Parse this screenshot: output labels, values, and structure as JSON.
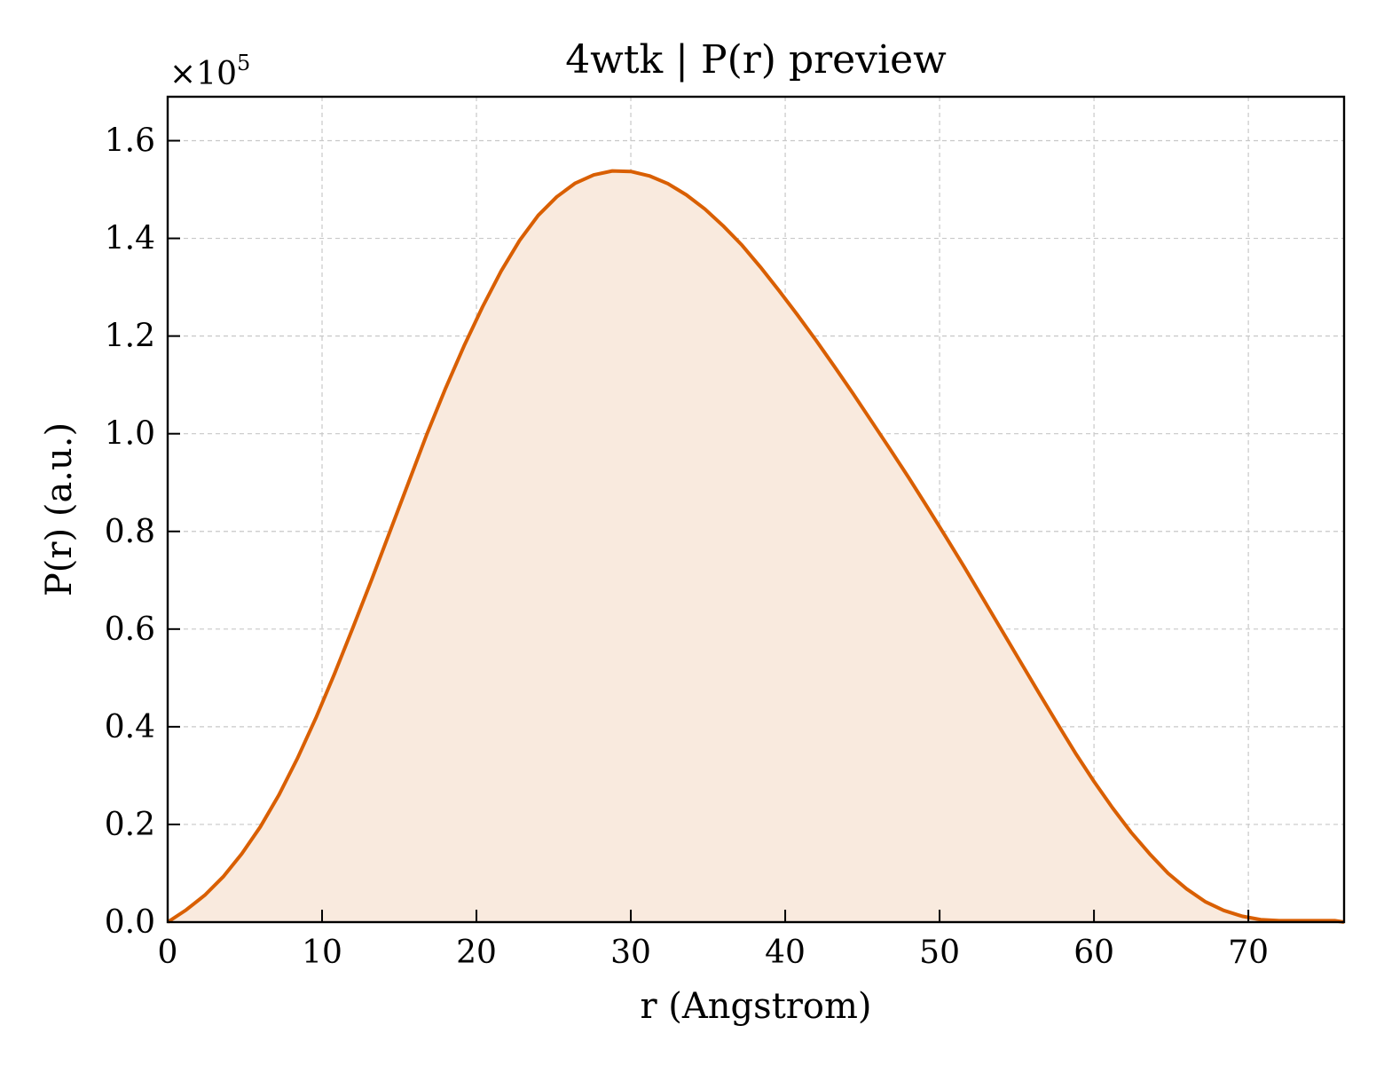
{
  "chart_data": {
    "type": "area",
    "title": "4wtk | P(r) preview",
    "xlabel": "r (Angstrom)",
    "ylabel": "P(r) (a.u.)",
    "y_scale_label": "×10",
    "y_scale_exponent": "5",
    "xlim": [
      0,
      76.2
    ],
    "ylim": [
      0,
      1.69
    ],
    "x_ticks": [
      0,
      10,
      20,
      30,
      40,
      50,
      60,
      70
    ],
    "x_tick_labels": [
      "0",
      "10",
      "20",
      "30",
      "40",
      "50",
      "60",
      "70"
    ],
    "y_ticks": [
      0,
      0.2,
      0.4,
      0.6,
      0.8,
      1.0,
      1.2,
      1.4,
      1.6
    ],
    "y_tick_labels": [
      "0.0",
      "0.2",
      "0.4",
      "0.6",
      "0.8",
      "1.0",
      "1.2",
      "1.4",
      "1.6"
    ],
    "grid": true,
    "line_color": "#d95f02",
    "fill_color": "#f9eade",
    "series": [
      {
        "x": [
          0,
          1.2,
          2.4,
          3.6,
          4.8,
          6.0,
          7.2,
          8.4,
          9.6,
          10.8,
          12.0,
          13.2,
          14.4,
          15.6,
          16.8,
          18.0,
          19.2,
          20.4,
          21.6,
          22.8,
          24.0,
          25.2,
          26.4,
          27.6,
          28.8,
          30.0,
          31.2,
          32.4,
          33.6,
          34.8,
          36.0,
          37.2,
          38.4,
          39.6,
          40.8,
          42.0,
          43.2,
          44.4,
          45.6,
          46.8,
          48.0,
          49.2,
          50.4,
          51.6,
          52.8,
          54.0,
          55.2,
          56.4,
          57.6,
          58.8,
          60.0,
          61.2,
          62.4,
          63.6,
          64.8,
          66.0,
          67.2,
          68.4,
          69.6,
          70.8,
          72.0,
          73.2,
          74.4,
          75.6,
          76.2
        ],
        "y": [
          0.0,
          0.025,
          0.055,
          0.093,
          0.14,
          0.195,
          0.26,
          0.335,
          0.418,
          0.508,
          0.603,
          0.7,
          0.8,
          0.9,
          1.0,
          1.093,
          1.18,
          1.26,
          1.333,
          1.396,
          1.447,
          1.485,
          1.513,
          1.53,
          1.538,
          1.537,
          1.528,
          1.512,
          1.489,
          1.46,
          1.425,
          1.386,
          1.341,
          1.293,
          1.243,
          1.191,
          1.137,
          1.082,
          1.025,
          0.968,
          0.91,
          0.85,
          0.789,
          0.727,
          0.663,
          0.599,
          0.535,
          0.471,
          0.408,
          0.346,
          0.288,
          0.234,
          0.184,
          0.14,
          0.1,
          0.068,
          0.042,
          0.024,
          0.012,
          0.005,
          0.003,
          0.003,
          0.003,
          0.003,
          0.0
        ]
      }
    ]
  }
}
